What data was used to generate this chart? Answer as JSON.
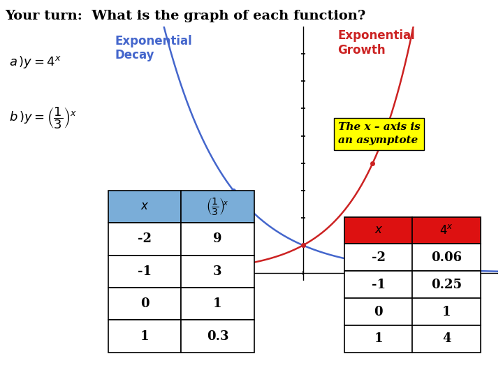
{
  "title": "Your turn:  What is the graph of each function?",
  "title_fontsize": 14,
  "bg_color": "#ffffff",
  "grid_color": "#b8cfe0",
  "decay_color": "#4466cc",
  "growth_color": "#cc2222",
  "table_header_blue": "#7aadd8",
  "table_header_red": "#dd1111",
  "table_border": "#000000",
  "yellow_bg": "#ffff00",
  "decay_label": "Exponential\nDecay",
  "growth_label": "Exponential\nGrowth",
  "asymptote_text": "The x – axis is\nan asymptote",
  "left_table": {
    "rows": [
      [
        "-2",
        "9"
      ],
      [
        "-1",
        "3"
      ],
      [
        "0",
        "1"
      ],
      [
        "1",
        "0.3"
      ]
    ]
  },
  "right_table": {
    "rows": [
      [
        "-2",
        "0.06"
      ],
      [
        "-1",
        "0.25"
      ],
      [
        "0",
        "1"
      ],
      [
        "1",
        "4"
      ]
    ]
  },
  "xmin": -2.8,
  "xmax": 2.8,
  "ymin": -0.3,
  "ymax": 9.0,
  "dot_size": 25
}
